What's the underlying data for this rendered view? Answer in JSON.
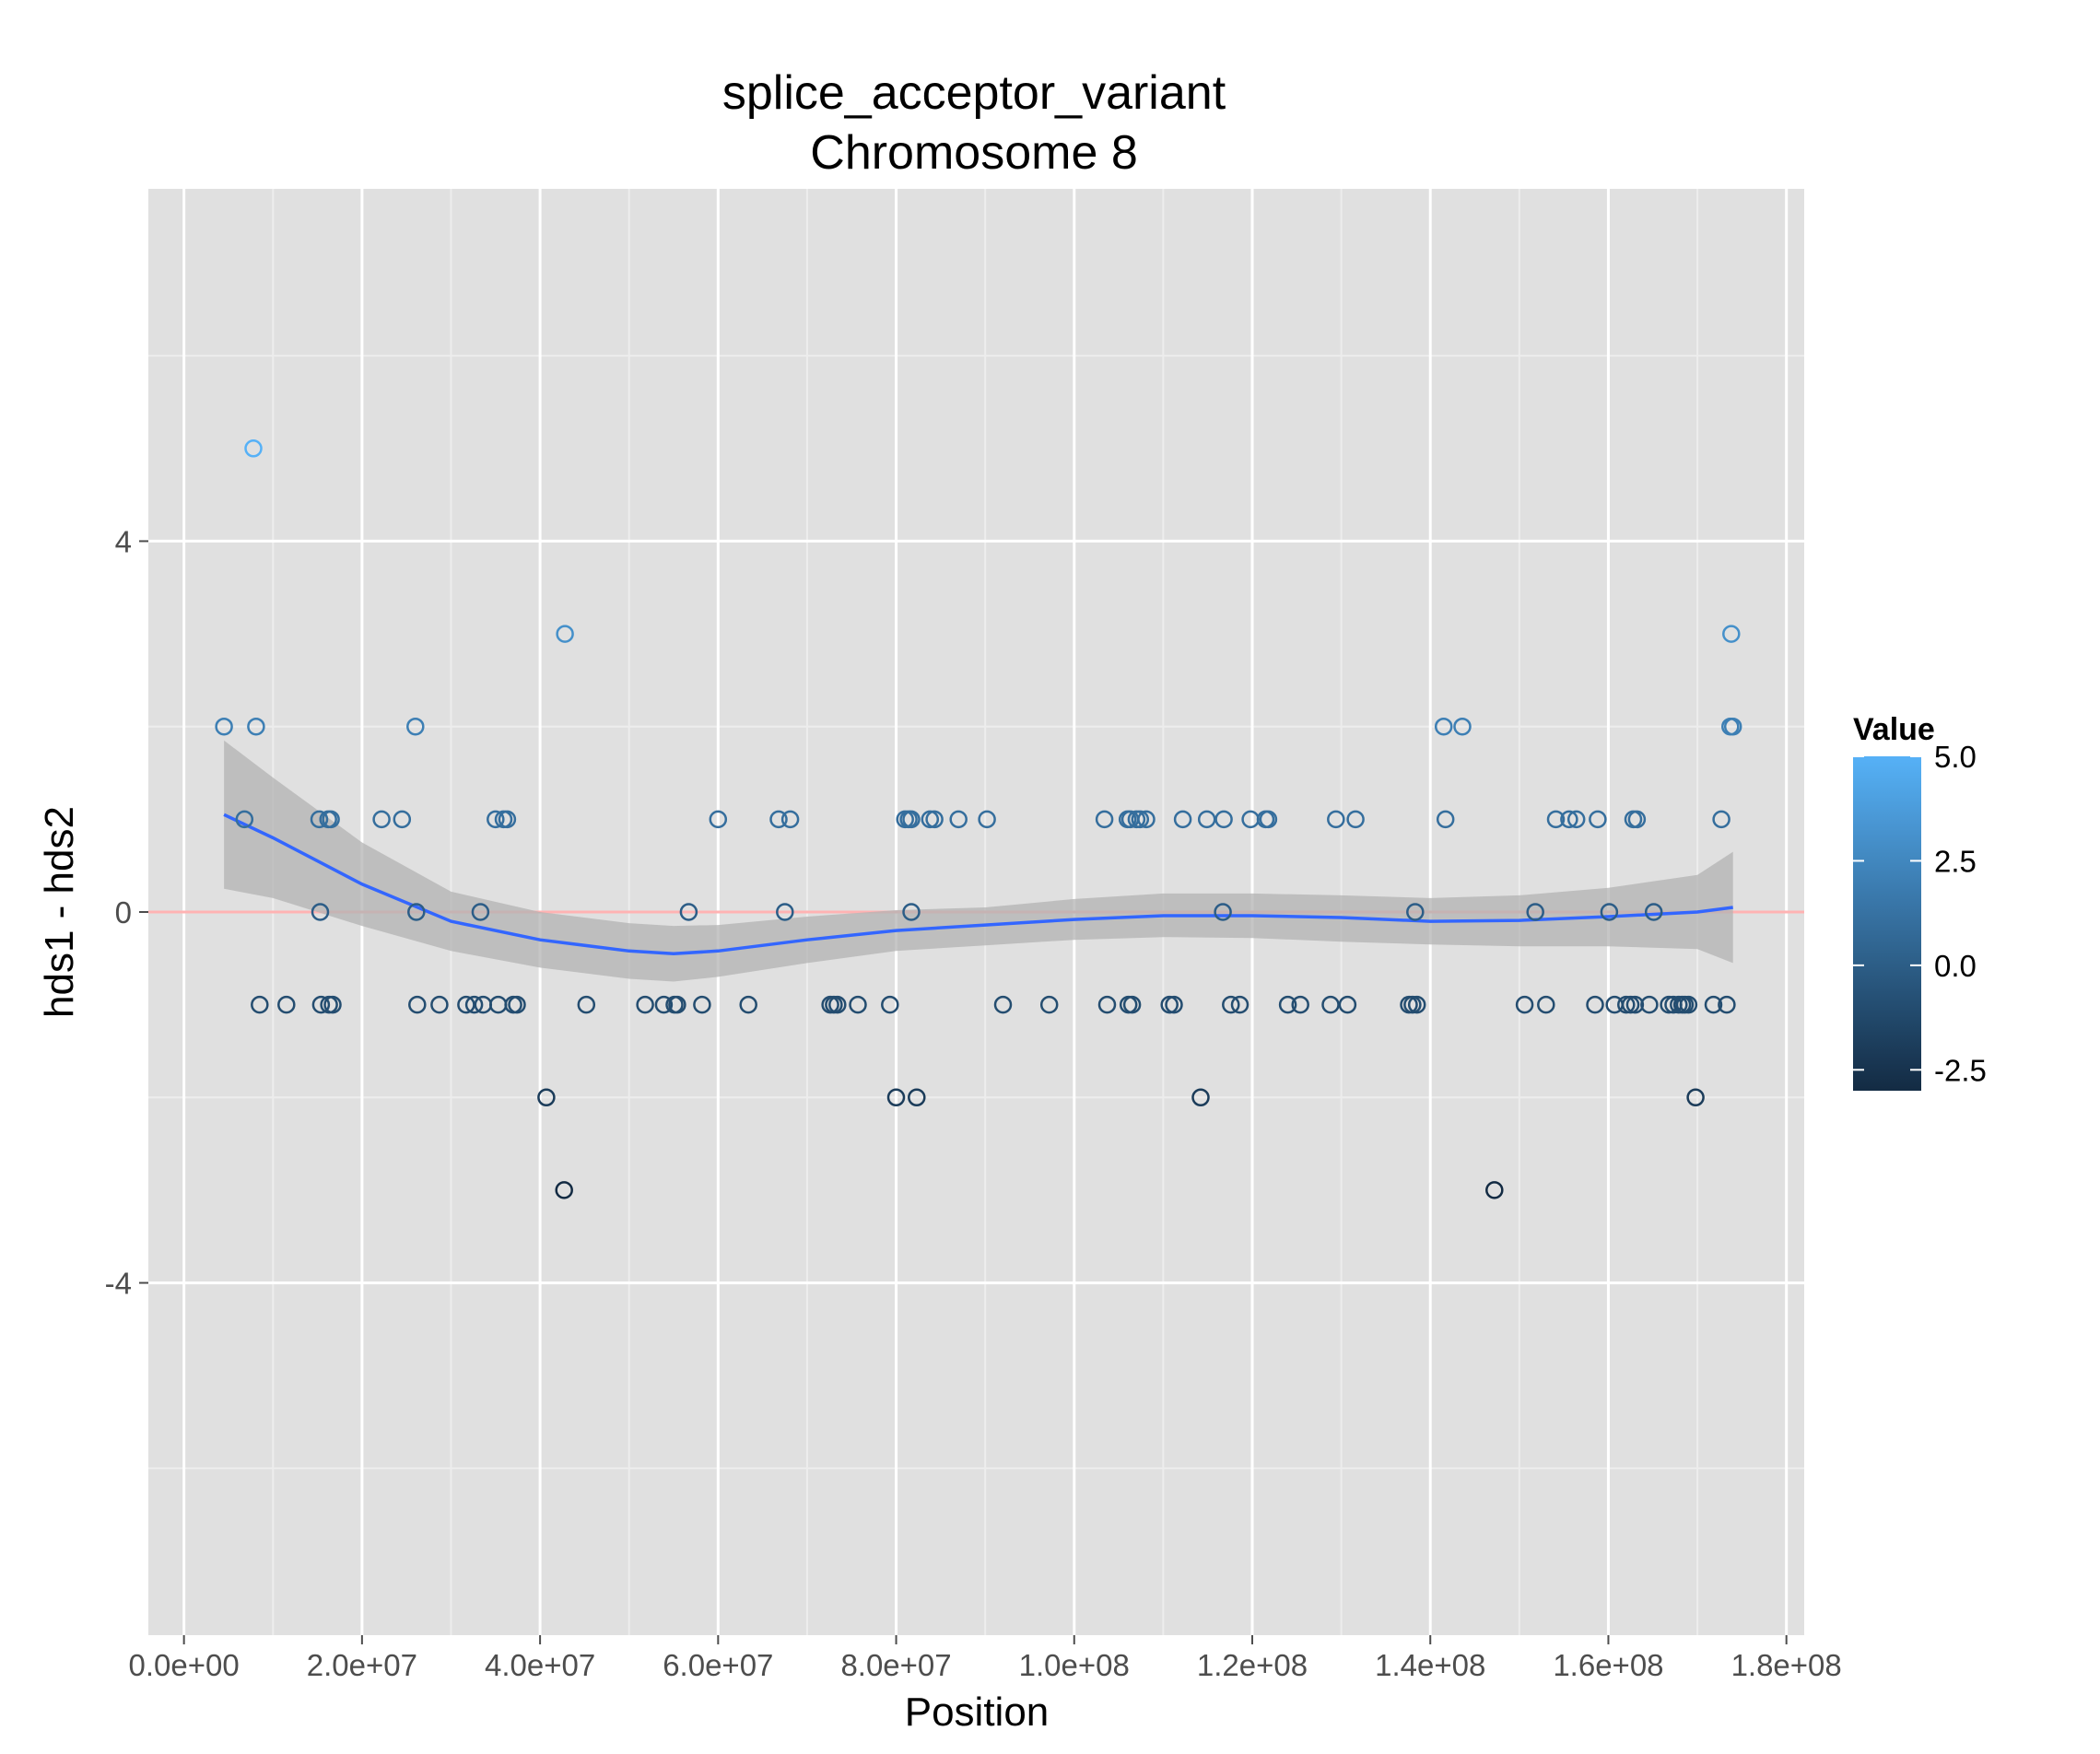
{
  "chart_data": {
    "type": "scatter",
    "title": "splice_acceptor_variant",
    "subtitle": "Chromosome 8",
    "xlabel": "Position",
    "ylabel": "hds1 - hds2",
    "xlim": [
      -4000000,
      182000000
    ],
    "ylim": [
      -7.8,
      7.8
    ],
    "x_ticks": [
      0,
      20000000,
      40000000,
      60000000,
      80000000,
      100000000,
      120000000,
      140000000,
      160000000,
      180000000
    ],
    "x_tick_labels": [
      "0.0e+00",
      "2.0e+07",
      "4.0e+07",
      "6.0e+07",
      "8.0e+07",
      "1.0e+08",
      "1.2e+08",
      "1.4e+08",
      "1.6e+08",
      "1.8e+08"
    ],
    "y_ticks": [
      -4,
      0,
      4
    ],
    "y_tick_labels": [
      "-4",
      "0",
      "4"
    ],
    "grid": true,
    "reference_line": {
      "y": 0,
      "color": "#ffb3b3"
    },
    "colors": {
      "panel": "#e0e0e0",
      "grid_major": "#ffffff",
      "grid_minor": "#ededed",
      "smooth_line": "#3366ff",
      "ribbon": "#b3b3b3",
      "low": "#132b43",
      "high": "#56b1f7"
    },
    "legend": {
      "title": "Value",
      "placement": "right",
      "min": -3,
      "max": 5,
      "breaks": [
        -2.5,
        0.0,
        2.5,
        5.0
      ],
      "labels": [
        "-2.5",
        "0.0",
        "2.5",
        "5.0"
      ]
    },
    "smooth": {
      "x": [
        4500000,
        10000000,
        20000000,
        30000000,
        40000000,
        50000000,
        55000000,
        60000000,
        70000000,
        80000000,
        90000000,
        100000000,
        110000000,
        120000000,
        130000000,
        140000000,
        150000000,
        160000000,
        170000000,
        174000000
      ],
      "y": [
        1.05,
        0.8,
        0.3,
        -0.1,
        -0.3,
        -0.42,
        -0.45,
        -0.42,
        -0.3,
        -0.2,
        -0.14,
        -0.08,
        -0.04,
        -0.04,
        -0.06,
        -0.1,
        -0.09,
        -0.05,
        0.0,
        0.05
      ],
      "lower": [
        0.25,
        0.15,
        -0.15,
        -0.42,
        -0.6,
        -0.72,
        -0.75,
        -0.7,
        -0.55,
        -0.42,
        -0.36,
        -0.3,
        -0.27,
        -0.28,
        -0.32,
        -0.35,
        -0.37,
        -0.37,
        -0.4,
        -0.55
      ],
      "upper": [
        1.85,
        1.45,
        0.75,
        0.22,
        0.0,
        -0.12,
        -0.15,
        -0.14,
        -0.05,
        0.02,
        0.05,
        0.14,
        0.2,
        0.2,
        0.18,
        0.15,
        0.18,
        0.26,
        0.4,
        0.65
      ]
    },
    "points": {
      "x": [
        4500000,
        6800000,
        7800000,
        8100000,
        8500000,
        11500000,
        15200000,
        15300000,
        15400000,
        16200000,
        16300000,
        16500000,
        16700000,
        22200000,
        24500000,
        26000000,
        26100000,
        26200000,
        28700000,
        31700000,
        32600000,
        33300000,
        33600000,
        35000000,
        35300000,
        35900000,
        36300000,
        37000000,
        37400000,
        40700000,
        42700000,
        42800000,
        45200000,
        51800000,
        53900000,
        55100000,
        55400000,
        56700000,
        58200000,
        60000000,
        63400000,
        66800000,
        67500000,
        68100000,
        72600000,
        73000000,
        73400000,
        75700000,
        79300000,
        80000000,
        81000000,
        81400000,
        81700000,
        81700000,
        82300000,
        83800000,
        84300000,
        87000000,
        90200000,
        92000000,
        97200000,
        103400000,
        103700000,
        106000000,
        106100000,
        106300000,
        106500000,
        107000000,
        107400000,
        108100000,
        110700000,
        111200000,
        112200000,
        114200000,
        114900000,
        116700000,
        116800000,
        117600000,
        118600000,
        119800000,
        121500000,
        121800000,
        124000000,
        125400000,
        128800000,
        129400000,
        130700000,
        131600000,
        137600000,
        138000000,
        138300000,
        138500000,
        141500000,
        141700000,
        143600000,
        147200000,
        150600000,
        151800000,
        153000000,
        154100000,
        155600000,
        156400000,
        158500000,
        158800000,
        160100000,
        160700000,
        162000000,
        162500000,
        162800000,
        163000000,
        163200000,
        164600000,
        165100000,
        166800000,
        167300000,
        167900000,
        168300000,
        168600000,
        169000000,
        169800000,
        171800000,
        172700000,
        173300000,
        173700000,
        173800000,
        174000000
      ],
      "y": [
        2,
        1,
        5,
        2,
        -1,
        -1,
        1,
        0,
        -1,
        1,
        -1,
        1,
        -1,
        1,
        1,
        2,
        0,
        -1,
        -1,
        -1,
        -1,
        0,
        -1,
        1,
        -1,
        1,
        1,
        -1,
        -1,
        -2,
        -3,
        3,
        -1,
        -1,
        -1,
        -1,
        -1,
        0,
        -1,
        1,
        -1,
        1,
        0,
        1,
        -1,
        -1,
        -1,
        -1,
        -1,
        -2,
        1,
        1,
        0,
        1,
        -2,
        1,
        1,
        1,
        1,
        -1,
        -1,
        1,
        -1,
        1,
        -1,
        1,
        -1,
        1,
        1,
        1,
        -1,
        -1,
        1,
        -2,
        1,
        0,
        1,
        -1,
        -1,
        1,
        1,
        1,
        -1,
        -1,
        -1,
        1,
        -1,
        1,
        -1,
        -1,
        0,
        -1,
        2,
        1,
        2,
        -3,
        -1,
        0,
        -1,
        1,
        1,
        1,
        -1,
        1,
        0,
        -1,
        -1,
        -1,
        1,
        -1,
        1,
        -1,
        0,
        -1,
        -1,
        -1,
        -1,
        -1,
        -1,
        -2,
        -1,
        1,
        -1,
        2,
        3,
        2
      ]
    }
  }
}
